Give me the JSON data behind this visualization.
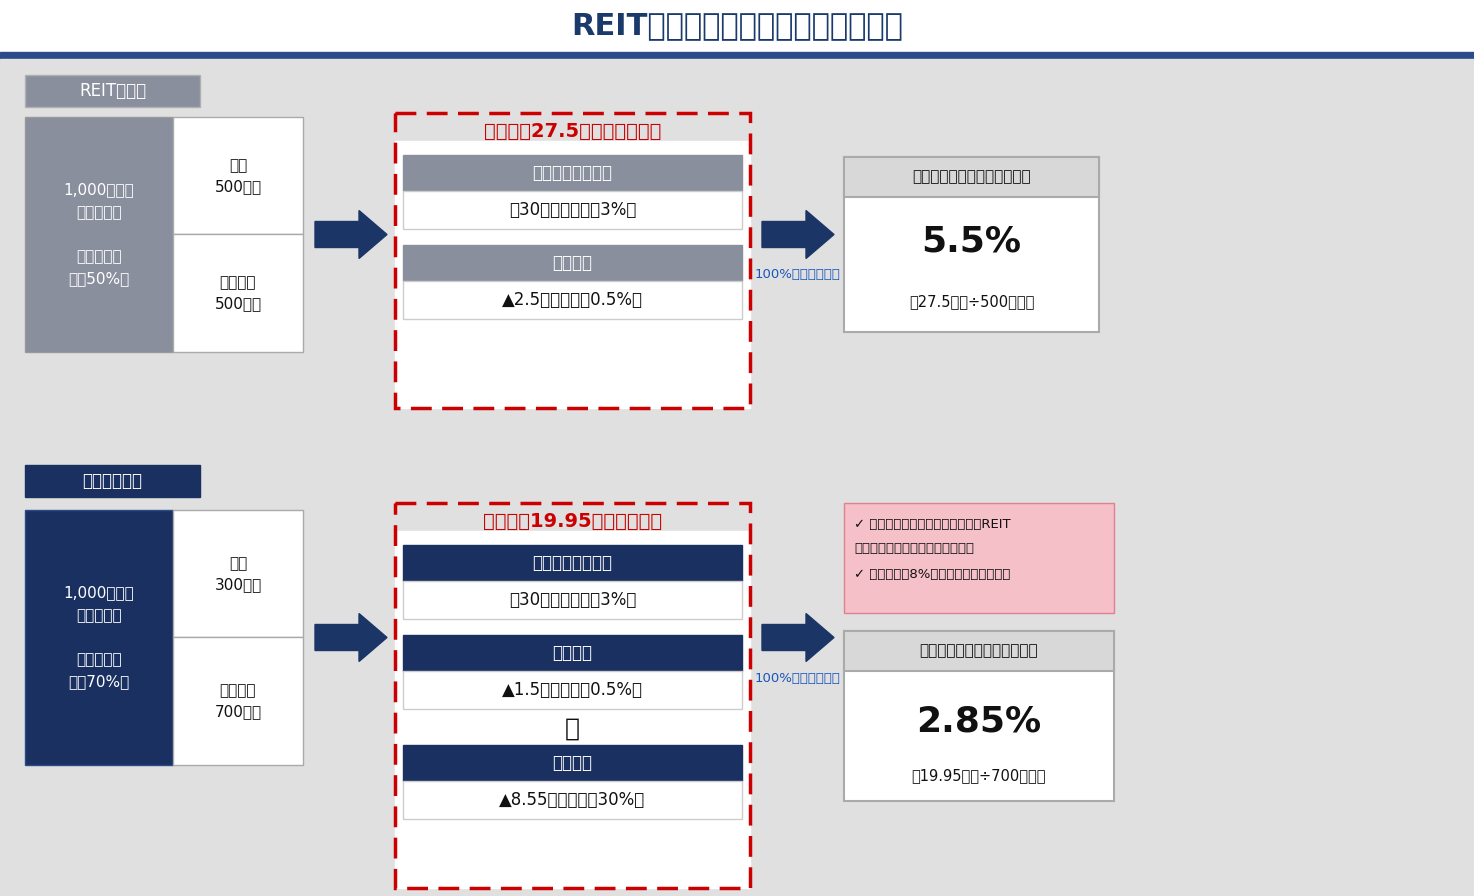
{
  "title": "REITとワキタの不動産賃貸業の比較",
  "title_color": "#1a3a6b",
  "bg_color": "#e8e8e8",
  "header_top_bg": "#ffffff",
  "header_line_color": "#2a4a8a",
  "gray_box": "#8a8f9e",
  "dark_navy": "#1a3060",
  "white": "#ffffff",
  "black": "#111111",
  "red_dashed": "#cc0000",
  "blue_arrow": "#1a3566",
  "pink_box": "#f5c0c8",
  "reit_label_bg": "#8a8f9e",
  "wakita_label_bg": "#1a3060",
  "reit_left_gray": "#8a8f9e",
  "wakita_left_navy": "#1a3060",
  "reit_label": "REITの場合",
  "wakita_label": "ワキタの場合",
  "reit_left_main": "1,000万円の\n物件を購入\n\n（自己資本\n比率50%）",
  "reit_debt": "負債\n500万円",
  "reit_equity": "自己資本\n500万円",
  "reit_box_title": "年間収支27.5万円（非課税）",
  "reit_income_label": "年間収益（賃料）",
  "reit_income_val": "＋30万円（利回り3%）",
  "reit_interest_label": "年間利息",
  "reit_interest_val": "▲2.5万円（金利0.5%）",
  "reit_return_title": "投資家のリターン（利回り）",
  "reit_return_pct": "5.5%",
  "reit_return_detail_1": "（27.5万円÷",
  "reit_return_detail_2": "500万円",
  "reit_return_detail_3": "）",
  "reit_100pct": "100%配当した場合",
  "wakita_left_main": "1,000万円の\n物件を購入\n\n（自己資本\n比率70%）",
  "wakita_debt": "負債\n300万円",
  "wakita_equity": "自己資本\n700万円",
  "wakita_box_title": "年間収支19.95万円（税後）",
  "wakita_income_label": "年間収益（賃料）",
  "wakita_income_val": "＋30万円（利回り3%）",
  "wakita_interest_label": "年間利息",
  "wakita_interest_val": "▲1.5万円（金利0.5%）",
  "wakita_plus": "＋",
  "wakita_tax_label": "法人税等",
  "wakita_tax_val": "▲8.55万円（税率30%）",
  "wakita_return_title": "投資家のリターン（利回り）",
  "wakita_return_pct": "2.85%",
  "wakita_return_detail_1": "（19.95万円÷",
  "wakita_return_detail_2": "700万円",
  "wakita_return_detail_3": "）",
  "wakita_100pct": "100%配当した場合",
  "comment_text": "✓ レバレッジ及び法人税の影響でREIT\n　を大きく下回る利回りとなる。\n✓ 資本コスト8%以上の超過は不可能。"
}
